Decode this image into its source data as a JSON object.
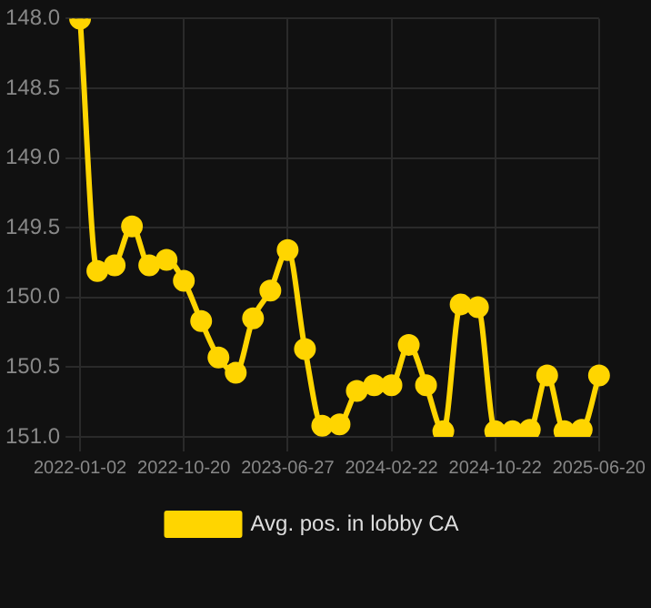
{
  "chart_data": {
    "type": "line",
    "categories": [
      "2022-01-02",
      null,
      null,
      null,
      null,
      null,
      "2022-10-20",
      null,
      null,
      null,
      null,
      null,
      "2023-06-27",
      null,
      null,
      null,
      null,
      null,
      "2024-02-22",
      null,
      null,
      null,
      null,
      null,
      "2024-10-22",
      null,
      null,
      null,
      null,
      null,
      "2025-06-20"
    ],
    "series": [
      {
        "name": "Avg. pos. in lobby CA",
        "color": "#ffd500",
        "values": [
          148.0,
          149.81,
          149.77,
          149.49,
          149.77,
          149.73,
          149.88,
          150.17,
          150.43,
          150.54,
          150.15,
          149.95,
          149.66,
          150.37,
          150.92,
          150.91,
          150.67,
          150.63,
          150.63,
          150.34,
          150.63,
          150.96,
          150.05,
          150.07,
          150.96,
          150.96,
          150.95,
          150.56,
          150.96,
          150.95,
          150.56
        ]
      }
    ],
    "ylim": [
      151.0,
      148.0
    ],
    "yticks": [
      {
        "value": 148,
        "label": "148.0"
      },
      {
        "value": 148.5,
        "label": "148.5"
      },
      {
        "value": 149,
        "label": "149.0"
      },
      {
        "value": 149.5,
        "label": "149.5"
      },
      {
        "value": 150,
        "label": "150.0"
      },
      {
        "value": 150.5,
        "label": "150.5"
      },
      {
        "value": 151,
        "label": "151.0"
      }
    ],
    "grid": true,
    "legend": "bottom",
    "marker": "circle",
    "line_style": "solid"
  }
}
